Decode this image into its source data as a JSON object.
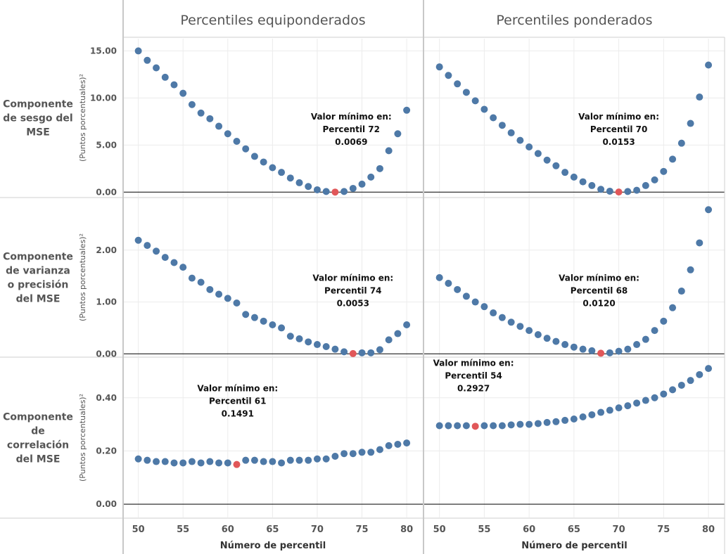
{
  "chart_data": {
    "type": "scatter",
    "x_axis_title": "Número de percentil",
    "y_axis_title": "(Puntos porcentuales)²",
    "columns": [
      "Percentiles equiponderados",
      "Percentiles ponderados"
    ],
    "rows": [
      {
        "label": [
          "Componente",
          "de sesgo del",
          "MSE"
        ],
        "yticks": [
          "0.00",
          "5.00",
          "10.00",
          "15.00"
        ],
        "ytick_values": [
          0,
          5,
          10,
          15
        ],
        "ylim": [
          -0.5,
          16.3
        ]
      },
      {
        "label": [
          "Componente",
          "de varianza",
          "o precisión",
          "del MSE"
        ],
        "yticks": [
          "0.00",
          "1.00",
          "2.00"
        ],
        "ytick_values": [
          0,
          1,
          2
        ],
        "ylim": [
          -0.05,
          3.0
        ]
      },
      {
        "label": [
          "Componente",
          "de",
          "correlación",
          "del MSE"
        ],
        "yticks": [
          "0.00",
          "0.20",
          "0.40"
        ],
        "ytick_values": [
          0,
          0.2,
          0.4
        ],
        "ylim": [
          -0.05,
          0.55
        ]
      }
    ],
    "x": [
      50,
      51,
      52,
      53,
      54,
      55,
      56,
      57,
      58,
      59,
      60,
      61,
      62,
      63,
      64,
      65,
      66,
      67,
      68,
      69,
      70,
      71,
      72,
      73,
      74,
      75,
      76,
      77,
      78,
      79,
      80
    ],
    "xticks": [
      50,
      55,
      60,
      65,
      70,
      75,
      80
    ],
    "xlim": [
      48.3,
      81.8
    ],
    "point_color": "#4e79a7",
    "min_color": "#e15759",
    "panels": [
      {
        "row": 0,
        "col": 0,
        "values": [
          15.0,
          14.0,
          13.2,
          12.2,
          11.4,
          10.5,
          9.3,
          8.4,
          7.8,
          7.0,
          6.2,
          5.4,
          4.6,
          3.8,
          3.2,
          2.6,
          2.1,
          1.5,
          1.0,
          0.6,
          0.25,
          0.07,
          0.0069,
          0.07,
          0.4,
          0.85,
          1.6,
          2.5,
          4.4,
          6.2,
          8.7
        ],
        "min_x": 72,
        "annotation": [
          "Valor mínimo en:",
          "Percentil 72",
          "0.0069"
        ],
        "annot_x": 73.8,
        "annot_y": 7.7
      },
      {
        "row": 0,
        "col": 1,
        "values": [
          13.3,
          12.4,
          11.5,
          10.6,
          9.7,
          8.8,
          7.9,
          7.1,
          6.3,
          5.5,
          4.8,
          4.1,
          3.4,
          2.8,
          2.1,
          1.6,
          1.1,
          0.7,
          0.3,
          0.1,
          0.0153,
          0.07,
          0.2,
          0.7,
          1.3,
          2.2,
          3.5,
          5.2,
          7.3,
          10.1,
          13.5
        ],
        "min_x": 70,
        "annotation": [
          "Valor mínimo en:",
          "Percentil 70",
          "0.0153"
        ],
        "annot_x": 70.0,
        "annot_y": 7.7
      },
      {
        "row": 1,
        "col": 0,
        "values": [
          2.19,
          2.09,
          1.98,
          1.86,
          1.76,
          1.67,
          1.46,
          1.38,
          1.24,
          1.15,
          1.07,
          0.98,
          0.76,
          0.7,
          0.63,
          0.56,
          0.5,
          0.34,
          0.29,
          0.23,
          0.18,
          0.14,
          0.09,
          0.04,
          0.0053,
          0.02,
          0.02,
          0.08,
          0.27,
          0.39,
          0.56
        ],
        "min_x": 74,
        "annotation": [
          "Valor mínimo en:",
          "Percentil 74",
          "0.0053"
        ],
        "annot_x": 74.0,
        "annot_y": 1.41
      },
      {
        "row": 1,
        "col": 1,
        "values": [
          1.47,
          1.36,
          1.24,
          1.11,
          1.0,
          0.91,
          0.79,
          0.7,
          0.61,
          0.53,
          0.45,
          0.37,
          0.3,
          0.24,
          0.18,
          0.13,
          0.09,
          0.06,
          0.012,
          0.02,
          0.05,
          0.09,
          0.18,
          0.28,
          0.45,
          0.63,
          0.89,
          1.21,
          1.62,
          2.14,
          2.78
        ],
        "min_x": 68,
        "annotation": [
          "Valor mínimo en:",
          "Percentil 68",
          "0.0120"
        ],
        "annot_x": 67.8,
        "annot_y": 1.41
      },
      {
        "row": 2,
        "col": 0,
        "values": [
          0.17,
          0.165,
          0.16,
          0.16,
          0.155,
          0.155,
          0.16,
          0.155,
          0.16,
          0.155,
          0.155,
          0.1491,
          0.165,
          0.165,
          0.16,
          0.16,
          0.155,
          0.165,
          0.165,
          0.165,
          0.17,
          0.17,
          0.18,
          0.19,
          0.19,
          0.195,
          0.195,
          0.205,
          0.22,
          0.225,
          0.23
        ],
        "min_x": 61,
        "annotation": [
          "Valor mínimo en:",
          "Percentil 61",
          "0.1491"
        ],
        "annot_x": 61.1,
        "annot_y": 0.425
      },
      {
        "row": 2,
        "col": 1,
        "values": [
          0.295,
          0.295,
          0.295,
          0.295,
          0.2927,
          0.295,
          0.295,
          0.295,
          0.298,
          0.3,
          0.3,
          0.303,
          0.307,
          0.31,
          0.315,
          0.32,
          0.328,
          0.336,
          0.345,
          0.353,
          0.362,
          0.37,
          0.38,
          0.39,
          0.4,
          0.414,
          0.43,
          0.447,
          0.465,
          0.487,
          0.51
        ],
        "min_x": 54,
        "annotation": [
          "Valor mínimo en:",
          "Percentil 54",
          "0.2927"
        ],
        "annot_x": 53.8,
        "annot_y": 0.52
      }
    ]
  }
}
